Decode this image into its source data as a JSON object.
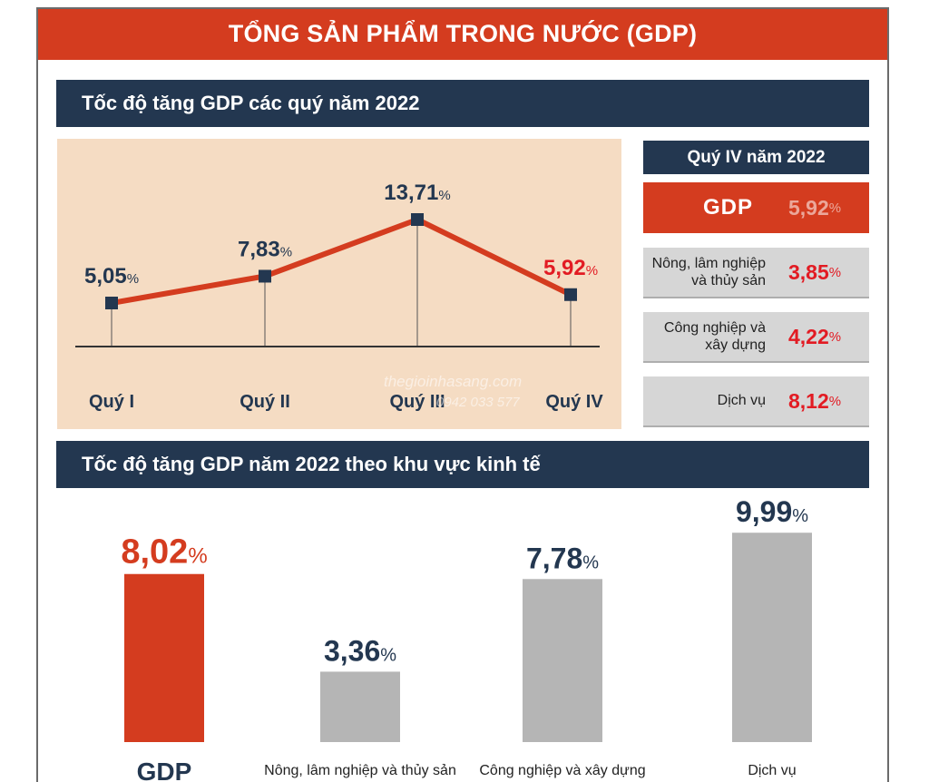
{
  "header": {
    "title": "TỔNG SẢN PHẨM TRONG NƯỚC (GDP)"
  },
  "colors": {
    "accent": "#d43c1f",
    "navy": "#233750",
    "grey_bar": "#b5b5b5",
    "panel_bg": "#f5dcc3",
    "highlight_red": "#e21b23"
  },
  "chart_data": [
    {
      "type": "line",
      "title": "Tốc độ tăng GDP các quý năm 2022",
      "categories": [
        "Quý I",
        "Quý II",
        "Quý III",
        "Quý IV"
      ],
      "values": [
        5.05,
        7.83,
        13.71,
        5.92
      ],
      "value_labels": [
        "5,05",
        "7,83",
        "13,71",
        "5,92"
      ],
      "unit": "%"
    },
    {
      "type": "bar",
      "title": "Tốc độ tăng GDP năm 2022 theo khu vực kinh tế",
      "categories": [
        "GDP",
        "Nông, lâm nghiệp và thủy sản",
        "Công nghiệp và xây dựng",
        "Dịch vụ"
      ],
      "values": [
        8.02,
        3.36,
        7.78,
        9.99
      ],
      "value_labels": [
        "8,02",
        "3,36",
        "7,78",
        "9,99"
      ],
      "unit": "%"
    }
  ],
  "q4_panel": {
    "title": "Quý IV năm 2022",
    "gdp_label": "GDP",
    "gdp_value": "5,92",
    "items": [
      {
        "label_line1": "Nông, lâm nghiệp",
        "label_line2": "và thủy sản",
        "value": "3,85"
      },
      {
        "label_line1": "Công nghiệp và",
        "label_line2": "xây dựng",
        "value": "4,22"
      },
      {
        "label_line1": "Dịch vụ",
        "label_line2": "",
        "value": "8,12"
      }
    ],
    "unit": "%"
  },
  "watermark": {
    "site": "thegioinhasang.com",
    "phone": "0942 033 577"
  }
}
